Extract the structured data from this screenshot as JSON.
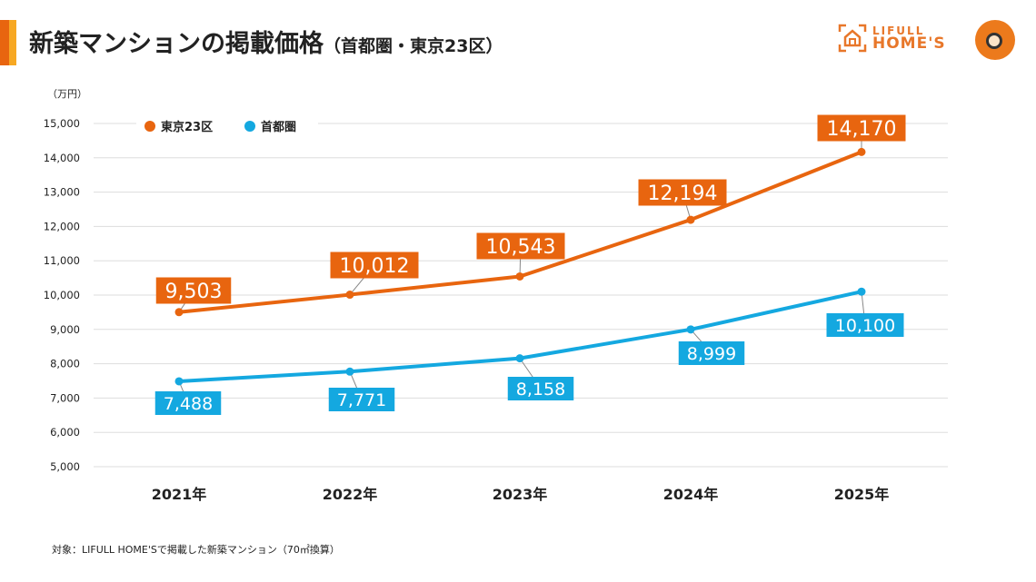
{
  "header": {
    "title": "新築マンションの掲載価格",
    "subtitle": "（首都圏・東京23区）"
  },
  "logo": {
    "line1": "LIFULL",
    "line2": "HOME'S"
  },
  "footnote": "対象：LIFULL HOME'Sで掲載した新築マンション（70㎡換算）",
  "chart_data": {
    "type": "line",
    "title": "新築マンションの掲載価格（首都圏・東京23区）",
    "ylabel": "（万円）",
    "categories": [
      "2021年",
      "2022年",
      "2023年",
      "2024年",
      "2025年"
    ],
    "ylim": [
      5000,
      15000
    ],
    "yticks": [
      "5,000",
      "6,000",
      "7,000",
      "8,000",
      "9,000",
      "10,000",
      "11,000",
      "12,000",
      "13,000",
      "14,000",
      "15,000"
    ],
    "grid": true,
    "legend": "top-left",
    "series": [
      {
        "name": "東京23区",
        "color": "#e8650f",
        "values": [
          9503,
          10012,
          10543,
          12194,
          14170
        ],
        "labels": [
          "9,503",
          "10,012",
          "10,543",
          "12,194",
          "14,170"
        ]
      },
      {
        "name": "首都圏",
        "color": "#14a8e0",
        "values": [
          7488,
          7771,
          8158,
          8999,
          10100
        ],
        "labels": [
          "7,488",
          "7,771",
          "8,158",
          "8,999",
          "10,100"
        ]
      }
    ]
  }
}
